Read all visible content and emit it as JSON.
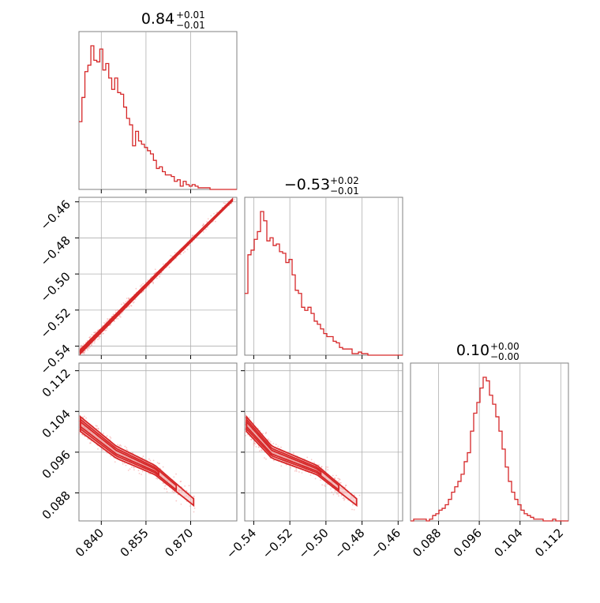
{
  "colors": {
    "series": "#d62728",
    "fill": "#f4b9b9",
    "grid": "#b0b0b0",
    "frame": "#808080"
  },
  "titles": [
    {
      "value": "0.84",
      "sup": "+0.01",
      "sub": "−0.01"
    },
    {
      "value": "−0.53",
      "sup": "+0.02",
      "sub": "−0.01"
    },
    {
      "value": "0.10",
      "sup": "+0.00",
      "sub": "−0.00"
    }
  ],
  "chart_data": [
    {
      "type": "histogram",
      "panel": "p0",
      "xlim": [
        0.8325,
        0.8855
      ],
      "grid": true,
      "x_ticks": [
        "0.840",
        "0.855",
        "0.870"
      ],
      "bin_start": 0.8325,
      "bin_width": 0.001,
      "counts": [
        42,
        57,
        73,
        77,
        89,
        80,
        79,
        87,
        74,
        78,
        69,
        62,
        69,
        60,
        59,
        51,
        44,
        40,
        27,
        36,
        30,
        28,
        26,
        24,
        22,
        18,
        13,
        14,
        11,
        9,
        9,
        8,
        5,
        6,
        2,
        5,
        3,
        2,
        3,
        2,
        1,
        1,
        1,
        1,
        0,
        0,
        0,
        0,
        0,
        0,
        0,
        0,
        0
      ]
    },
    {
      "type": "histogram",
      "panel": "p4",
      "xlim": [
        -0.545,
        -0.4575
      ],
      "grid": true,
      "bin_start": -0.545,
      "bin_width": 0.00175,
      "counts": [
        40,
        65,
        68,
        75,
        80,
        93,
        87,
        74,
        76,
        71,
        72,
        67,
        66,
        60,
        62,
        52,
        42,
        40,
        31,
        29,
        31,
        27,
        22,
        20,
        17,
        14,
        12,
        12,
        9,
        8,
        5,
        4,
        4,
        4,
        1,
        1,
        2,
        1,
        1,
        0,
        0,
        0,
        0,
        0,
        0,
        0,
        0,
        0,
        0,
        0
      ]
    },
    {
      "type": "histogram",
      "panel": "p8",
      "xlim": [
        0.0825,
        0.1135
      ],
      "grid": true,
      "x_ticks": [
        "0.088",
        "0.096",
        "0.104",
        "0.112"
      ],
      "bin_start": 0.0825,
      "bin_width": 0.00062,
      "counts": [
        0,
        1,
        1,
        1,
        1,
        0,
        1,
        3,
        4,
        6,
        7,
        9,
        12,
        16,
        19,
        22,
        26,
        33,
        38,
        50,
        60,
        66,
        74,
        80,
        78,
        70,
        65,
        58,
        50,
        40,
        30,
        22,
        16,
        12,
        9,
        6,
        4,
        3,
        2,
        1,
        1,
        1,
        0,
        0,
        0,
        1,
        0,
        0,
        0,
        0
      ]
    },
    {
      "type": "2d-density",
      "panel": "p3",
      "xlim": [
        0.8325,
        0.8855
      ],
      "ylim": [
        -0.545,
        -0.4575
      ],
      "y_ticks": [
        "−0.46",
        "−0.48",
        "−0.50",
        "−0.52",
        "−0.54"
      ],
      "grid": true,
      "trend": [
        [
          0.833,
          -0.543
        ],
        [
          0.845,
          -0.523
        ],
        [
          0.86,
          -0.498
        ],
        [
          0.884,
          -0.459
        ]
      ]
    },
    {
      "type": "2d-density",
      "panel": "p6",
      "xlim": [
        0.8325,
        0.8855
      ],
      "ylim": [
        0.0825,
        0.1135
      ],
      "y_ticks": [
        "0.112",
        "0.104",
        "0.096",
        "0.088"
      ],
      "x_ticks": [
        "0.840",
        "0.855",
        "0.870"
      ],
      "grid": true,
      "trend": [
        [
          0.833,
          0.1015
        ],
        [
          0.845,
          0.096
        ],
        [
          0.858,
          0.0925
        ],
        [
          0.871,
          0.0862
        ]
      ]
    },
    {
      "type": "2d-density",
      "panel": "p7",
      "xlim": [
        -0.545,
        -0.4575
      ],
      "ylim": [
        0.0825,
        0.1135
      ],
      "x_ticks": [
        "−0.54",
        "−0.52",
        "−0.50",
        "−0.48",
        "−0.46"
      ],
      "grid": true,
      "trend": [
        [
          -0.544,
          0.1015
        ],
        [
          -0.53,
          0.096
        ],
        [
          -0.505,
          0.0925
        ],
        [
          -0.483,
          0.0862
        ]
      ]
    }
  ]
}
